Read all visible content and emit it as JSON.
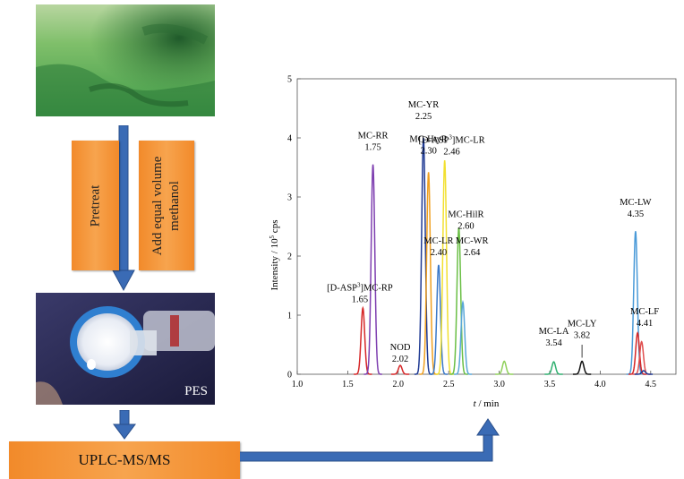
{
  "workflow": {
    "step_pretreat": "Pretreat",
    "step_add_methanol_line1": "Add equal volume",
    "step_add_methanol_line2": "methanol",
    "filter_label": "PES",
    "instrument_label": "UPLC-MS/MS"
  },
  "chart_data": {
    "type": "line",
    "xlabel_symbol": "t",
    "xlabel_unit": " / min",
    "ylabel_prefix": "Intensity / 10",
    "ylabel_sup": "5",
    "ylabel_suffix": " cps",
    "xlim": [
      1.0,
      4.75
    ],
    "ylim": [
      0,
      5
    ],
    "x_ticks": [
      "1.0",
      "1.5",
      "2.0",
      "2.5",
      "3.0",
      "3.5",
      "4.0",
      "4.5"
    ],
    "y_ticks": [
      "0",
      "1",
      "2",
      "3",
      "4",
      "5"
    ],
    "peaks": [
      {
        "rt": 1.65,
        "height": 1.12,
        "color": "#d62728",
        "label_lines": [
          "[D-ASP",
          "3",
          "]MC-RP",
          "1.65"
        ],
        "name": "[D-ASP3]MC-RP"
      },
      {
        "rt": 1.75,
        "height": 3.55,
        "color": "#7e3fb0",
        "label_lines": [
          "MC-RR",
          "1.75"
        ]
      },
      {
        "rt": 2.02,
        "height": 0.15,
        "color": "#d62728",
        "label_lines": [
          "NOD",
          "2.02"
        ]
      },
      {
        "rt": 2.25,
        "height": 4.0,
        "color": "#1f3a93",
        "label_lines": [
          "MC-YR",
          "2.25"
        ]
      },
      {
        "rt": 2.3,
        "height": 3.42,
        "color": "#f0a020",
        "label_lines": [
          "MC-HtyR",
          "2.30"
        ]
      },
      {
        "rt": 2.4,
        "height": 1.85,
        "color": "#3a78c8",
        "label_lines": [
          "MC-LR",
          "2.40"
        ]
      },
      {
        "rt": 2.46,
        "height": 3.62,
        "color": "#f2e030",
        "label_lines": [
          "[D-ASP",
          "3",
          "]MC-LR",
          "2.46"
        ]
      },
      {
        "rt": 2.6,
        "height": 2.48,
        "color": "#6abf45",
        "label_lines": [
          "MC-HilR",
          "2.60"
        ]
      },
      {
        "rt": 2.64,
        "height": 1.22,
        "color": "#5aa7d8",
        "label_lines": [
          "MC-WR",
          "2.64"
        ]
      },
      {
        "rt": 3.05,
        "height": 0.22,
        "color": "#8fd05a",
        "label_lines": []
      },
      {
        "rt": 3.54,
        "height": 0.21,
        "color": "#30b070",
        "label_lines": [
          "MC-LA",
          "3.54"
        ]
      },
      {
        "rt": 3.82,
        "height": 0.22,
        "color": "#111111",
        "label_lines": [
          "MC-LY",
          "3.82"
        ]
      },
      {
        "rt": 4.35,
        "height": 2.42,
        "color": "#4a9ad8",
        "label_lines": [
          "MC-LW",
          "4.35"
        ]
      },
      {
        "rt": 4.37,
        "height": 0.7,
        "color": "#d62728",
        "label_lines": []
      },
      {
        "rt": 4.41,
        "height": 0.55,
        "color": "#e05050",
        "label_lines": [
          "MC-LF",
          "4.41"
        ]
      },
      {
        "rt": 4.43,
        "height": 0.06,
        "color": "#1f3a93",
        "label_lines": []
      }
    ]
  }
}
